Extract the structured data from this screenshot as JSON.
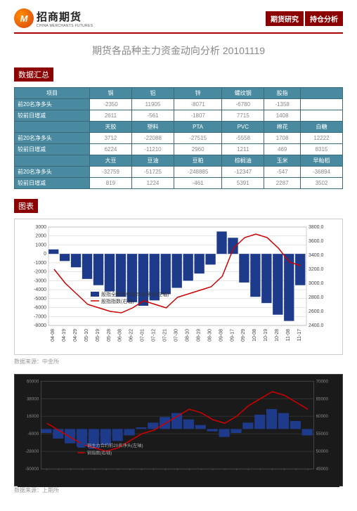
{
  "header": {
    "logo_cn": "招商期货",
    "logo_en": "CHINA MERCHANTS FUTURES",
    "logo_mark": "M",
    "tag1": "期货研究",
    "tag2": "持仓分析"
  },
  "title": "期货各品种主力资金动向分析 20101119",
  "sec1": "数据汇总",
  "sec2": "图表",
  "table": {
    "headers1": [
      "项目",
      "铜",
      "铝",
      "锌",
      "螺纹钢",
      "股指",
      ""
    ],
    "r1": {
      "label": "前20名净多头",
      "c": [
        "-2350",
        "11905",
        "-8071",
        "-6780",
        "-1358",
        ""
      ]
    },
    "r2": {
      "label": "较前日增减",
      "c": [
        "2611",
        "-561",
        "-1807",
        "7715",
        "1408",
        ""
      ]
    },
    "headers2": [
      "",
      "天胶",
      "塑料",
      "PTA",
      "PVC",
      "棉花",
      "白糖"
    ],
    "r3": {
      "label": "前20名净多头",
      "c": [
        "3712",
        "-22088",
        "-27515",
        "-5558",
        "1708",
        "12222"
      ]
    },
    "r4": {
      "label": "较前日增减",
      "c": [
        "6224",
        "-11210",
        "2960",
        "1211",
        "469",
        "8315"
      ]
    },
    "headers3": [
      "",
      "大豆",
      "豆油",
      "豆粕",
      "棕榈油",
      "玉米",
      "早籼稻"
    ],
    "r5": {
      "label": "前20名净多头",
      "c": [
        "-32759",
        "-51725",
        "-248885",
        "-12347",
        "-547",
        "-36894"
      ]
    },
    "r6": {
      "label": "较前日增减",
      "c": [
        "819",
        "1224",
        "-461",
        "5391",
        "2287",
        "3502"
      ]
    }
  },
  "chart1": {
    "type": "combo",
    "legend1": "股指全部合约前20名净多(左轴)",
    "legend2": "股指指数(右轴)",
    "y_left": {
      "min": -8000,
      "max": 3000,
      "ticks": [
        -8000,
        -7000,
        -6000,
        -5000,
        -4000,
        -3000,
        -2000,
        -1000,
        0,
        1000,
        2000,
        3000
      ]
    },
    "y_right": {
      "min": 2400,
      "max": 3800,
      "ticks": [
        "2400.0",
        "2600.0",
        "2800.0",
        "3000.0",
        "3200.0",
        "3400.0",
        "3600.0",
        "3800.0"
      ]
    },
    "x_labels": [
      "04-08",
      "04-19",
      "04-29",
      "05-10",
      "05-19",
      "05-28",
      "06-08",
      "06-22",
      "07-01",
      "07-12",
      "07-21",
      "07-30",
      "08-10",
      "08-19",
      "08-30",
      "09-08",
      "09-17",
      "09-29",
      "10-08",
      "10-19",
      "10-28",
      "11-08",
      "11-17"
    ],
    "bars": [
      500,
      -800,
      -1500,
      -2800,
      -3500,
      -4200,
      -4800,
      -5400,
      -5800,
      -5200,
      -4500,
      -3800,
      -3000,
      -2200,
      -1200,
      2500,
      1800,
      -3200,
      -4800,
      -5500,
      -6800,
      -7500,
      -3500
    ],
    "line": [
      3200,
      3000,
      2850,
      2700,
      2650,
      2600,
      2580,
      2650,
      2750,
      2700,
      2650,
      2800,
      2850,
      2900,
      2950,
      3100,
      3500,
      3650,
      3700,
      3650,
      3500,
      3300,
      3250
    ],
    "bar_color": "#1e3a8a",
    "line_color": "#c00",
    "grid_color": "#ccc"
  },
  "caption1": "数据来源：中金所",
  "chart2": {
    "type": "combo",
    "legend1": "铜主力合约前20名净头(左轴)",
    "legend2": "铜指数(右轴)",
    "y_left": {
      "min": -50000,
      "max": 60000
    },
    "y_right": {
      "min": 45000,
      "max": 70000
    },
    "bars": [
      -5000,
      -12000,
      -18000,
      -22000,
      -25000,
      -20000,
      -15000,
      -8000,
      2000,
      8000,
      15000,
      20000,
      12000,
      5000,
      -3000,
      -10000,
      -5000,
      8000,
      18000,
      25000,
      20000,
      10000,
      -8000
    ],
    "line": [
      58000,
      56000,
      54000,
      52000,
      51000,
      50000,
      51000,
      53000,
      55000,
      56000,
      58000,
      60000,
      62000,
      61000,
      59000,
      58000,
      60000,
      63000,
      65000,
      67000,
      66000,
      64000,
      62000
    ],
    "bar_color": "#1e3a8a",
    "line_color": "#c00",
    "bg": "#1a1a1a"
  },
  "caption2": "数据来源：上期所"
}
